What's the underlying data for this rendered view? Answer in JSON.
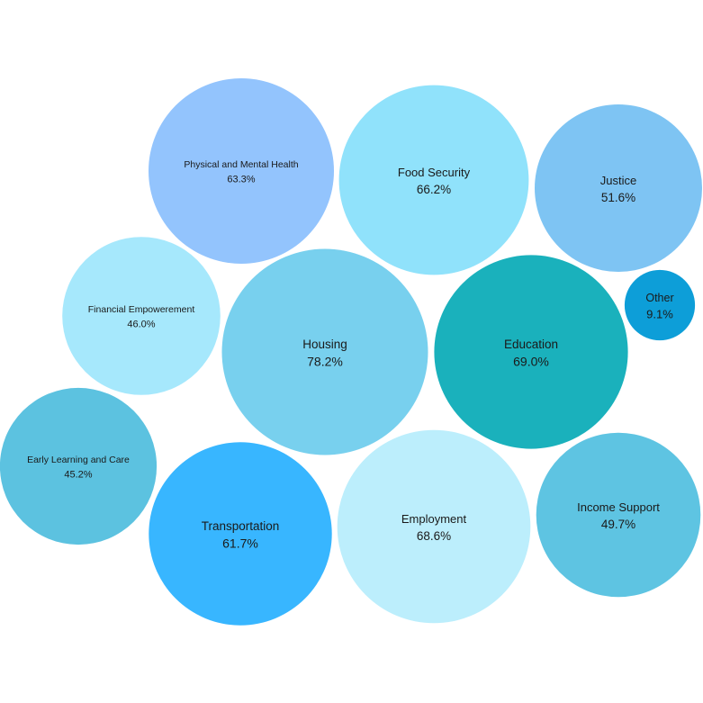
{
  "chart_data": {
    "type": "bubble",
    "value_format": "percent",
    "series": [
      {
        "name": "Physical and Mental Health",
        "value": 63.3,
        "value_label": "63.3%",
        "color": "#93C4FD"
      },
      {
        "name": "Food Security",
        "value": 66.2,
        "value_label": "66.2%",
        "color": "#90E2FB"
      },
      {
        "name": "Justice",
        "value": 51.6,
        "value_label": "51.6%",
        "color": "#7EC4F3"
      },
      {
        "name": "Other",
        "value": 9.1,
        "value_label": "9.1%",
        "color": "#0D9ED8"
      },
      {
        "name": "Financial Empowerement",
        "value": 46.0,
        "value_label": "46.0%",
        "color": "#A6E8FC"
      },
      {
        "name": "Housing",
        "value": 78.2,
        "value_label": "78.2%",
        "color": "#78D0EE"
      },
      {
        "name": "Education",
        "value": 69.0,
        "value_label": "69.0%",
        "color": "#1AB1BC"
      },
      {
        "name": "Early Learning and Care",
        "value": 45.2,
        "value_label": "45.2%",
        "color": "#5CC2E0"
      },
      {
        "name": "Transportation",
        "value": 61.7,
        "value_label": "61.7%",
        "color": "#38B6FF"
      },
      {
        "name": "Employment",
        "value": 68.6,
        "value_label": "68.6%",
        "color": "#BCEEFC"
      },
      {
        "name": "Income Support",
        "value": 49.7,
        "value_label": "49.7%",
        "color": "#5EC4E2"
      }
    ]
  }
}
